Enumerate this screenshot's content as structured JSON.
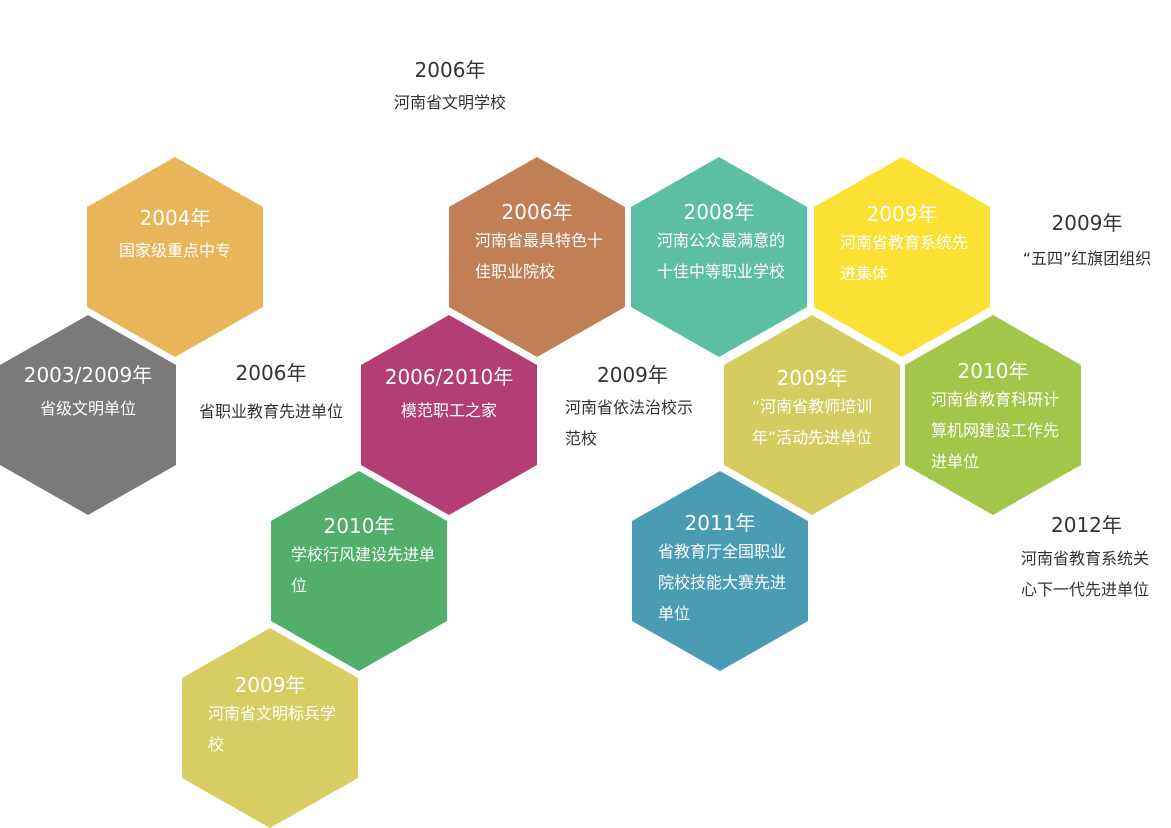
{
  "colors": {
    "amber": "#E8B55B",
    "gray": "#7A7A7A",
    "copper": "#C07F55",
    "teal": "#5CBFA3",
    "yellow": "#FCE034",
    "magenta": "#B23E74",
    "olive": "#D6CB5E",
    "lime": "#A2C649",
    "green": "#52AE6B",
    "steel_blue": "#4A9CB5",
    "khaki": "#D8CD62"
  },
  "hexagons": [
    {
      "year": "2004年",
      "desc": "国家级重点中专"
    },
    {
      "year": "2003/2009年",
      "desc": "省级文明单位"
    },
    {
      "year": "2006年",
      "desc": "河南省最具特色十佳职业院校"
    },
    {
      "year": "2008年",
      "desc": "河南公众最满意的十佳中等职业学校"
    },
    {
      "year": "2009年",
      "desc": "河南省教育系统先进集体"
    },
    {
      "year": "2006/2010年",
      "desc": "模范职工之家"
    },
    {
      "year": "2009年",
      "desc": "“河南省教师培训年”活动先进单位"
    },
    {
      "year": "2010年",
      "desc": "河南省教育科研计算机网建设工作先进单位"
    },
    {
      "year": "2010年",
      "desc": "学校行风建设先进单位"
    },
    {
      "year": "2011年",
      "desc": "省教育厅全国职业院校技能大赛先进单位"
    },
    {
      "year": "2009年",
      "desc": "河南省文明标兵学校"
    }
  ],
  "plain_awards": [
    {
      "year": "2006年",
      "desc": "河南省文明学校"
    },
    {
      "year": "2006年",
      "desc": "省职业教育先进单位"
    },
    {
      "year": "2009年",
      "desc": "河南省依法治校示范校"
    },
    {
      "year": "2009年",
      "desc": "“五四”红旗团组织"
    },
    {
      "year": "2012年",
      "desc": "河南省教育系统关心下一代先进单位"
    }
  ]
}
